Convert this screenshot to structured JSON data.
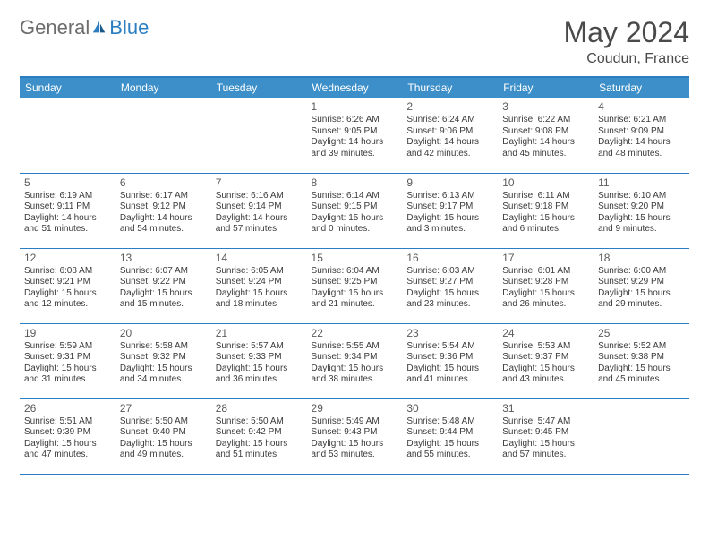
{
  "logo": {
    "text1": "General",
    "text2": "Blue"
  },
  "title": "May 2024",
  "location": "Coudun, France",
  "colors": {
    "header_bg": "#3d8fc9",
    "border": "#2b7ec2",
    "text": "#3a3a3a",
    "title_text": "#4a4a4a",
    "logo_gray": "#6d6d6d",
    "logo_blue": "#2b7ec2",
    "bg": "#ffffff"
  },
  "weekdays": [
    "Sunday",
    "Monday",
    "Tuesday",
    "Wednesday",
    "Thursday",
    "Friday",
    "Saturday"
  ],
  "leading_blanks": 3,
  "days": [
    {
      "n": "1",
      "sr": "6:26 AM",
      "ss": "9:05 PM",
      "dl": "14 hours and 39 minutes."
    },
    {
      "n": "2",
      "sr": "6:24 AM",
      "ss": "9:06 PM",
      "dl": "14 hours and 42 minutes."
    },
    {
      "n": "3",
      "sr": "6:22 AM",
      "ss": "9:08 PM",
      "dl": "14 hours and 45 minutes."
    },
    {
      "n": "4",
      "sr": "6:21 AM",
      "ss": "9:09 PM",
      "dl": "14 hours and 48 minutes."
    },
    {
      "n": "5",
      "sr": "6:19 AM",
      "ss": "9:11 PM",
      "dl": "14 hours and 51 minutes."
    },
    {
      "n": "6",
      "sr": "6:17 AM",
      "ss": "9:12 PM",
      "dl": "14 hours and 54 minutes."
    },
    {
      "n": "7",
      "sr": "6:16 AM",
      "ss": "9:14 PM",
      "dl": "14 hours and 57 minutes."
    },
    {
      "n": "8",
      "sr": "6:14 AM",
      "ss": "9:15 PM",
      "dl": "15 hours and 0 minutes."
    },
    {
      "n": "9",
      "sr": "6:13 AM",
      "ss": "9:17 PM",
      "dl": "15 hours and 3 minutes."
    },
    {
      "n": "10",
      "sr": "6:11 AM",
      "ss": "9:18 PM",
      "dl": "15 hours and 6 minutes."
    },
    {
      "n": "11",
      "sr": "6:10 AM",
      "ss": "9:20 PM",
      "dl": "15 hours and 9 minutes."
    },
    {
      "n": "12",
      "sr": "6:08 AM",
      "ss": "9:21 PM",
      "dl": "15 hours and 12 minutes."
    },
    {
      "n": "13",
      "sr": "6:07 AM",
      "ss": "9:22 PM",
      "dl": "15 hours and 15 minutes."
    },
    {
      "n": "14",
      "sr": "6:05 AM",
      "ss": "9:24 PM",
      "dl": "15 hours and 18 minutes."
    },
    {
      "n": "15",
      "sr": "6:04 AM",
      "ss": "9:25 PM",
      "dl": "15 hours and 21 minutes."
    },
    {
      "n": "16",
      "sr": "6:03 AM",
      "ss": "9:27 PM",
      "dl": "15 hours and 23 minutes."
    },
    {
      "n": "17",
      "sr": "6:01 AM",
      "ss": "9:28 PM",
      "dl": "15 hours and 26 minutes."
    },
    {
      "n": "18",
      "sr": "6:00 AM",
      "ss": "9:29 PM",
      "dl": "15 hours and 29 minutes."
    },
    {
      "n": "19",
      "sr": "5:59 AM",
      "ss": "9:31 PM",
      "dl": "15 hours and 31 minutes."
    },
    {
      "n": "20",
      "sr": "5:58 AM",
      "ss": "9:32 PM",
      "dl": "15 hours and 34 minutes."
    },
    {
      "n": "21",
      "sr": "5:57 AM",
      "ss": "9:33 PM",
      "dl": "15 hours and 36 minutes."
    },
    {
      "n": "22",
      "sr": "5:55 AM",
      "ss": "9:34 PM",
      "dl": "15 hours and 38 minutes."
    },
    {
      "n": "23",
      "sr": "5:54 AM",
      "ss": "9:36 PM",
      "dl": "15 hours and 41 minutes."
    },
    {
      "n": "24",
      "sr": "5:53 AM",
      "ss": "9:37 PM",
      "dl": "15 hours and 43 minutes."
    },
    {
      "n": "25",
      "sr": "5:52 AM",
      "ss": "9:38 PM",
      "dl": "15 hours and 45 minutes."
    },
    {
      "n": "26",
      "sr": "5:51 AM",
      "ss": "9:39 PM",
      "dl": "15 hours and 47 minutes."
    },
    {
      "n": "27",
      "sr": "5:50 AM",
      "ss": "9:40 PM",
      "dl": "15 hours and 49 minutes."
    },
    {
      "n": "28",
      "sr": "5:50 AM",
      "ss": "9:42 PM",
      "dl": "15 hours and 51 minutes."
    },
    {
      "n": "29",
      "sr": "5:49 AM",
      "ss": "9:43 PM",
      "dl": "15 hours and 53 minutes."
    },
    {
      "n": "30",
      "sr": "5:48 AM",
      "ss": "9:44 PM",
      "dl": "15 hours and 55 minutes."
    },
    {
      "n": "31",
      "sr": "5:47 AM",
      "ss": "9:45 PM",
      "dl": "15 hours and 57 minutes."
    }
  ],
  "labels": {
    "sunrise": "Sunrise:",
    "sunset": "Sunset:",
    "daylight": "Daylight:"
  }
}
